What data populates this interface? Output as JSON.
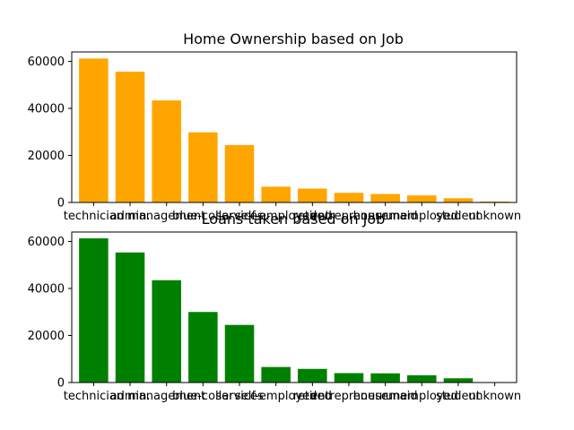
{
  "chart_data": [
    {
      "type": "bar",
      "title": "Home Ownership based on Job",
      "xlabel": "",
      "ylabel": "",
      "color": "#ffa500",
      "categories": [
        "technician",
        "admin.",
        "management",
        "blue-collar",
        "services",
        "self-employed",
        "retired",
        "entrepreneur",
        "housemaid",
        "unemployed",
        "student",
        "unknown"
      ],
      "values": [
        61200,
        55600,
        43400,
        29800,
        24400,
        6700,
        5900,
        4100,
        3600,
        3000,
        1800,
        400
      ],
      "ylim": [
        0,
        64000
      ],
      "yticks": [
        0,
        20000,
        40000,
        60000
      ],
      "grid": false
    },
    {
      "type": "bar",
      "title": "Loans taken based on Job",
      "xlabel": "",
      "ylabel": "",
      "color": "#008000",
      "categories": [
        "technician",
        "admin.",
        "management",
        "blue-collar",
        "services",
        "self-employed",
        "retired",
        "entrepreneur",
        "housemaid",
        "unemployed",
        "student",
        "unknown"
      ],
      "values": [
        61300,
        55300,
        43500,
        30000,
        24500,
        6600,
        5800,
        4000,
        3900,
        3100,
        1800,
        0
      ],
      "ylim": [
        0,
        64000
      ],
      "yticks": [
        0,
        20000,
        40000,
        60000
      ],
      "grid": false
    }
  ]
}
